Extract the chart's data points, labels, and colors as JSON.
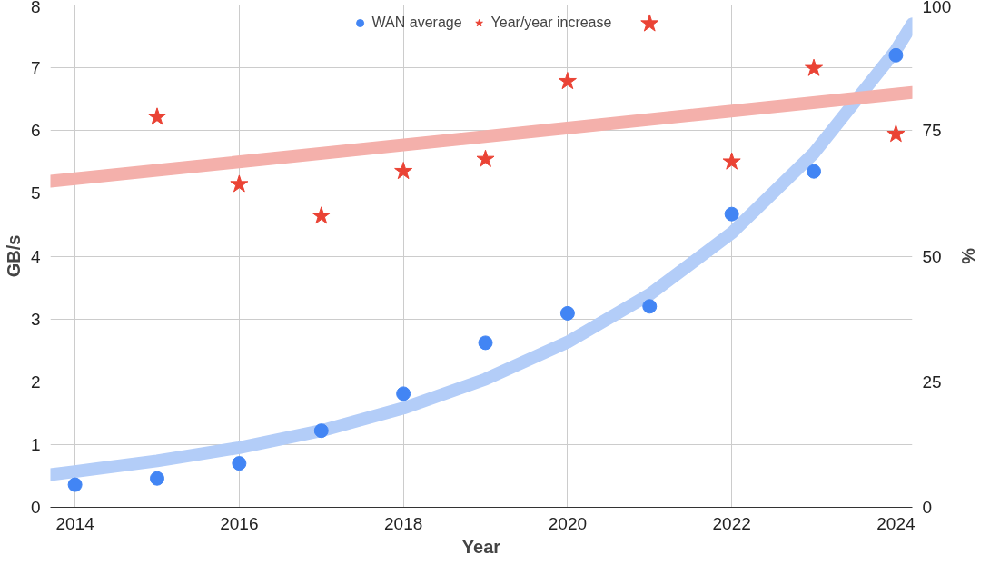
{
  "chart_data": {
    "type": "scatter",
    "xlabel": "Year",
    "ylabel": "GB/s",
    "y2label": "%",
    "x": [
      2014,
      2015,
      2016,
      2017,
      2018,
      2019,
      2020,
      2021,
      2022,
      2023,
      2024
    ],
    "series": [
      {
        "name": "WAN average",
        "color": "#4285f4",
        "marker": "circle",
        "values": [
          0.36,
          0.46,
          0.7,
          1.22,
          1.81,
          2.62,
          3.09,
          3.2,
          4.67,
          5.35,
          7.2
        ]
      },
      {
        "name": "Year/year increase",
        "color": "#ea4335",
        "marker": "star",
        "axis": "y2",
        "x": [
          2015,
          2016,
          2017,
          2018,
          2019,
          2020,
          2021,
          2022,
          2023,
          2024
        ],
        "values": [
          77.7,
          64.3,
          58.0,
          66.9,
          69.3,
          84.8,
          96.3,
          68.8,
          87.4,
          74.3
        ]
      },
      {
        "type": "line",
        "color": "#b3cdf8",
        "x": [
          2013.7,
          2014,
          2015,
          2016,
          2017,
          2018,
          2019,
          2020,
          2021,
          2022,
          2023,
          2024,
          2024.2
        ],
        "values": [
          0.52,
          0.57,
          0.74,
          0.95,
          1.22,
          1.58,
          2.04,
          2.63,
          3.39,
          4.37,
          5.64,
          7.28,
          7.7
        ]
      },
      {
        "type": "line",
        "color": "#f4b0ab",
        "axis": "y2",
        "x": [
          2013.7,
          2024.2
        ],
        "values": [
          64.9,
          82.6
        ]
      }
    ],
    "xlim": [
      2013.7,
      2024.2
    ],
    "xticks": [
      2014,
      2016,
      2018,
      2020,
      2022,
      2024
    ],
    "ylim": [
      0,
      8
    ],
    "yticks": [
      0,
      1,
      2,
      3,
      4,
      5,
      6,
      7,
      8
    ],
    "y2lim": [
      0,
      100
    ],
    "y2ticks": [
      0,
      25,
      50,
      75,
      100
    ],
    "grid": true,
    "legend": "top"
  }
}
